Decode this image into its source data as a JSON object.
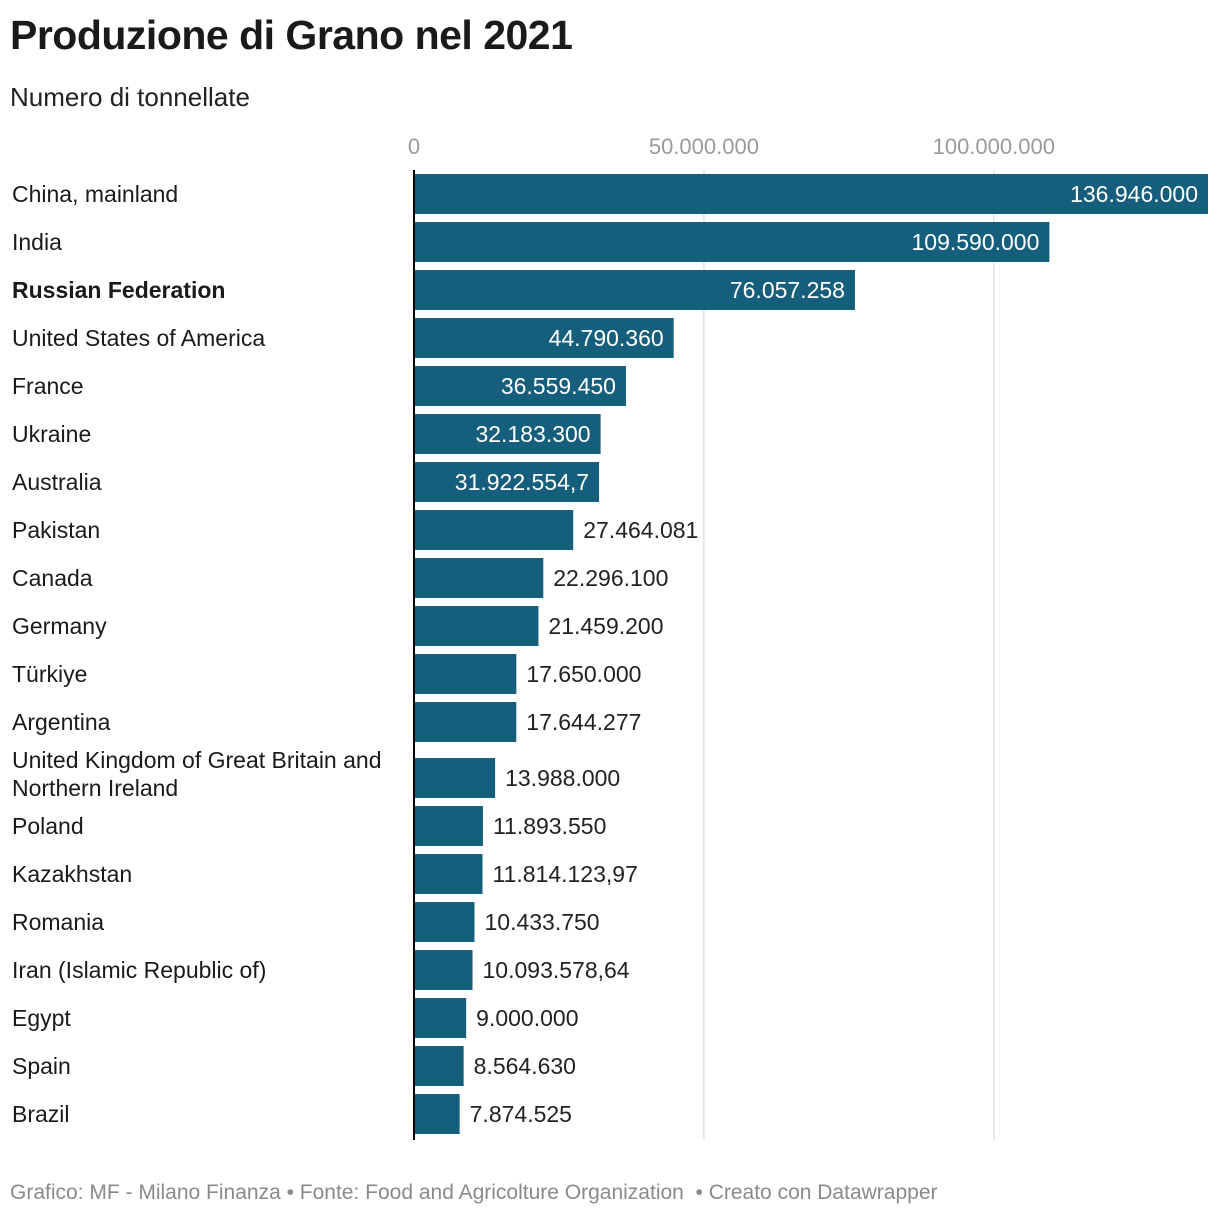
{
  "header": {
    "title": "Produzione di Grano nel 2021",
    "subtitle": "Numero di tonnellate"
  },
  "footer": {
    "credit": "Grafico: MF - Milano Finanza",
    "source": "Fonte: Food and Agricolture Organization",
    "tool": "Creato con Datawrapper",
    "sep1": " • ",
    "sep2": "  • "
  },
  "colors": {
    "bar": "#165f7c",
    "grid": "#e2e2e2",
    "axis": "#000000",
    "tick": "#9a9a9a",
    "label_inside": "#ffffff",
    "label_outside": "#222222"
  },
  "chart_data": {
    "type": "bar",
    "orientation": "horizontal",
    "xlim": [
      0,
      136946000
    ],
    "xticks": [
      {
        "value": 0,
        "label": "0"
      },
      {
        "value": 50000000,
        "label": "50.000.000"
      },
      {
        "value": 100000000,
        "label": "100.000.000"
      }
    ],
    "grid": true,
    "highlighted_category": "Russian Federation",
    "categories": [
      "China, mainland",
      "India",
      "Russian Federation",
      "United States of America",
      "France",
      "Ukraine",
      "Australia",
      "Pakistan",
      "Canada",
      "Germany",
      "Türkiye",
      "Argentina",
      "United Kingdom of Great Britain and Northern Ireland",
      "Poland",
      "Kazakhstan",
      "Romania",
      "Iran (Islamic Republic of)",
      "Egypt",
      "Spain",
      "Brazil"
    ],
    "category_display_lines": [
      [
        "China, mainland"
      ],
      [
        "India"
      ],
      [
        "Russian Federation"
      ],
      [
        "United States of America"
      ],
      [
        "France"
      ],
      [
        "Ukraine"
      ],
      [
        "Australia"
      ],
      [
        "Pakistan"
      ],
      [
        "Canada"
      ],
      [
        "Germany"
      ],
      [
        "Türkiye"
      ],
      [
        "Argentina"
      ],
      [
        "United Kingdom of Great Britain and",
        "Northern Ireland"
      ],
      [
        "Poland"
      ],
      [
        "Kazakhstan"
      ],
      [
        "Romania"
      ],
      [
        "Iran (Islamic Republic of)"
      ],
      [
        "Egypt"
      ],
      [
        "Spain"
      ],
      [
        "Brazil"
      ]
    ],
    "values": [
      136946000,
      109590000,
      76057258,
      44790360,
      36559450,
      32183300,
      31922554.7,
      27464081,
      22296100,
      21459200,
      17650000,
      17644277,
      13988000,
      11893550,
      11814123.97,
      10433750,
      10093578.64,
      9000000,
      8564630,
      7874525
    ],
    "value_labels": [
      "136.946.000",
      "109.590.000",
      "76.057.258",
      "44.790.360",
      "36.559.450",
      "32.183.300",
      "31.922.554,7",
      "27.464.081",
      "22.296.100",
      "21.459.200",
      "17.650.000",
      "17.644.277",
      "13.988.000",
      "11.893.550",
      "11.814.123,97",
      "10.433.750",
      "10.093.578,64",
      "9.000.000",
      "8.564.630",
      "7.874.525"
    ]
  }
}
